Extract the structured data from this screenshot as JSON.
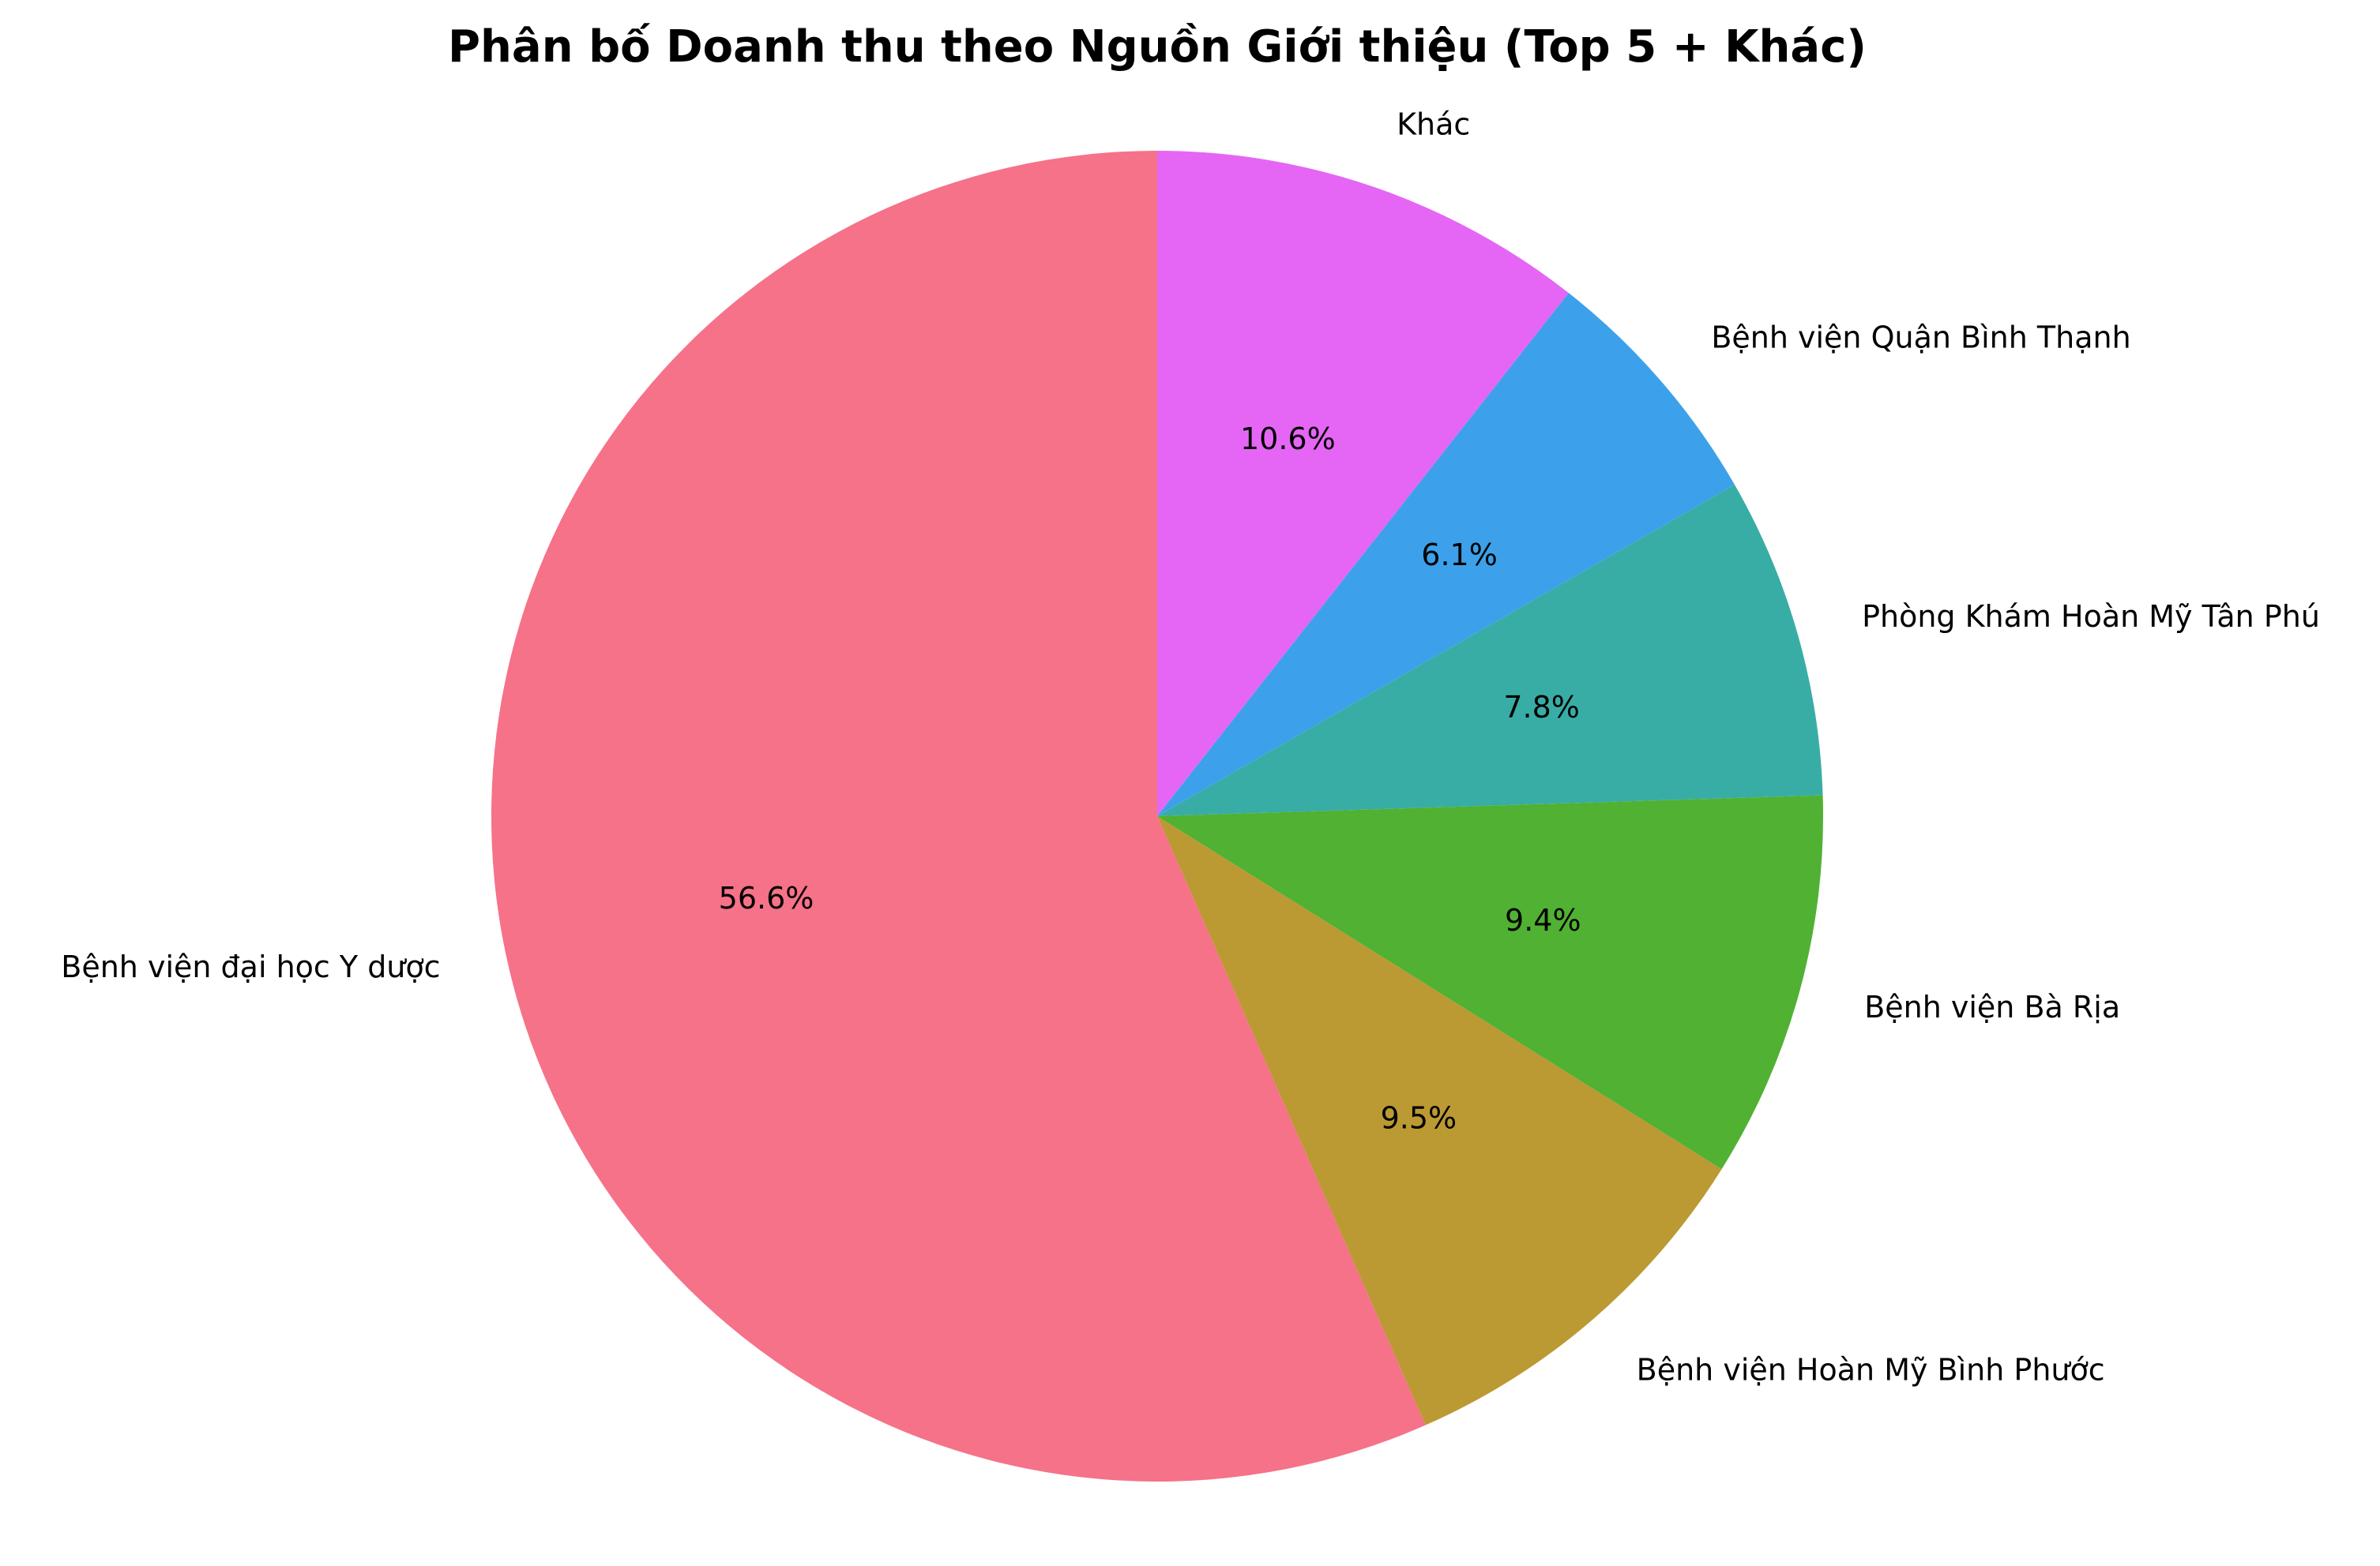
{
  "chart_data": {
    "type": "pie",
    "title": "Phân bố Doanh thu theo Nguồn Giới thiệu (Top 5 + Khác)",
    "start_angle_deg": 90,
    "direction": "clockwise",
    "slices": [
      {
        "label": "Khác",
        "value": 10.6,
        "pct_label": "10.6%",
        "color": "#e566f5"
      },
      {
        "label": "Bệnh viện Quận Bình Thạnh",
        "value": 6.1,
        "pct_label": "6.1%",
        "color": "#3ca1ea"
      },
      {
        "label": "Phòng Khám Hoàn Mỹ Tân Phú",
        "value": 7.8,
        "pct_label": "7.8%",
        "color": "#38ada6"
      },
      {
        "label": "Bệnh viện Bà Rịa",
        "value": 9.4,
        "pct_label": "9.4%",
        "color": "#50b132"
      },
      {
        "label": "Bệnh viện Hoàn Mỹ Bình Phước",
        "value": 9.5,
        "pct_label": "9.5%",
        "color": "#bb9933"
      },
      {
        "label": "Bệnh viện đại học Y dược",
        "value": 56.6,
        "pct_label": "56.6%",
        "color": "#f57288"
      }
    ]
  }
}
